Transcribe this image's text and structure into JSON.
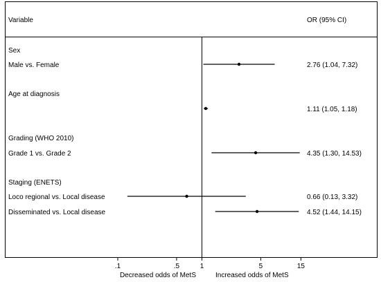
{
  "chart_data": {
    "type": "forest",
    "x_scale": "log",
    "xlim": [
      0.1,
      15
    ],
    "ticks": [
      {
        "value": 0.1,
        "label": ".1"
      },
      {
        "value": 0.5,
        "label": ".5"
      },
      {
        "value": 1,
        "label": "1"
      },
      {
        "value": 5,
        "label": "5"
      },
      {
        "value": 15,
        "label": "15"
      }
    ],
    "reference_line": 1,
    "header": {
      "variable": "Variable",
      "estimate": "OR (95% CI)"
    },
    "x_annotations": {
      "left": "Decreased odds of MetS",
      "right": "Increased odds of MetS"
    },
    "groups": [
      {
        "label": "Sex",
        "rows": [
          {
            "label": "Male vs. Female",
            "or": 2.76,
            "lo": 1.04,
            "hi": 7.32,
            "text": "2.76 (1.04, 7.32)"
          }
        ]
      },
      {
        "label": "Age at diagnosis",
        "rows": [
          {
            "label": "",
            "or": 1.11,
            "lo": 1.05,
            "hi": 1.18,
            "text": "1.11 (1.05, 1.18)"
          }
        ]
      },
      {
        "label": "Grading (WHO 2010)",
        "rows": [
          {
            "label": "Grade 1 vs. Grade 2",
            "or": 4.35,
            "lo": 1.3,
            "hi": 14.53,
            "text": "4.35 (1.30, 14.53)"
          }
        ]
      },
      {
        "label": "Staging (ENETS)",
        "rows": [
          {
            "label": "Loco regional vs. Local disease",
            "or": 0.66,
            "lo": 0.13,
            "hi": 3.32,
            "text": "0.66 (0.13, 3.32)"
          },
          {
            "label": "Disseminated vs. Local disease",
            "or": 4.52,
            "lo": 1.44,
            "hi": 14.15,
            "text": "4.52 (1.44, 14.15)"
          }
        ]
      }
    ]
  }
}
